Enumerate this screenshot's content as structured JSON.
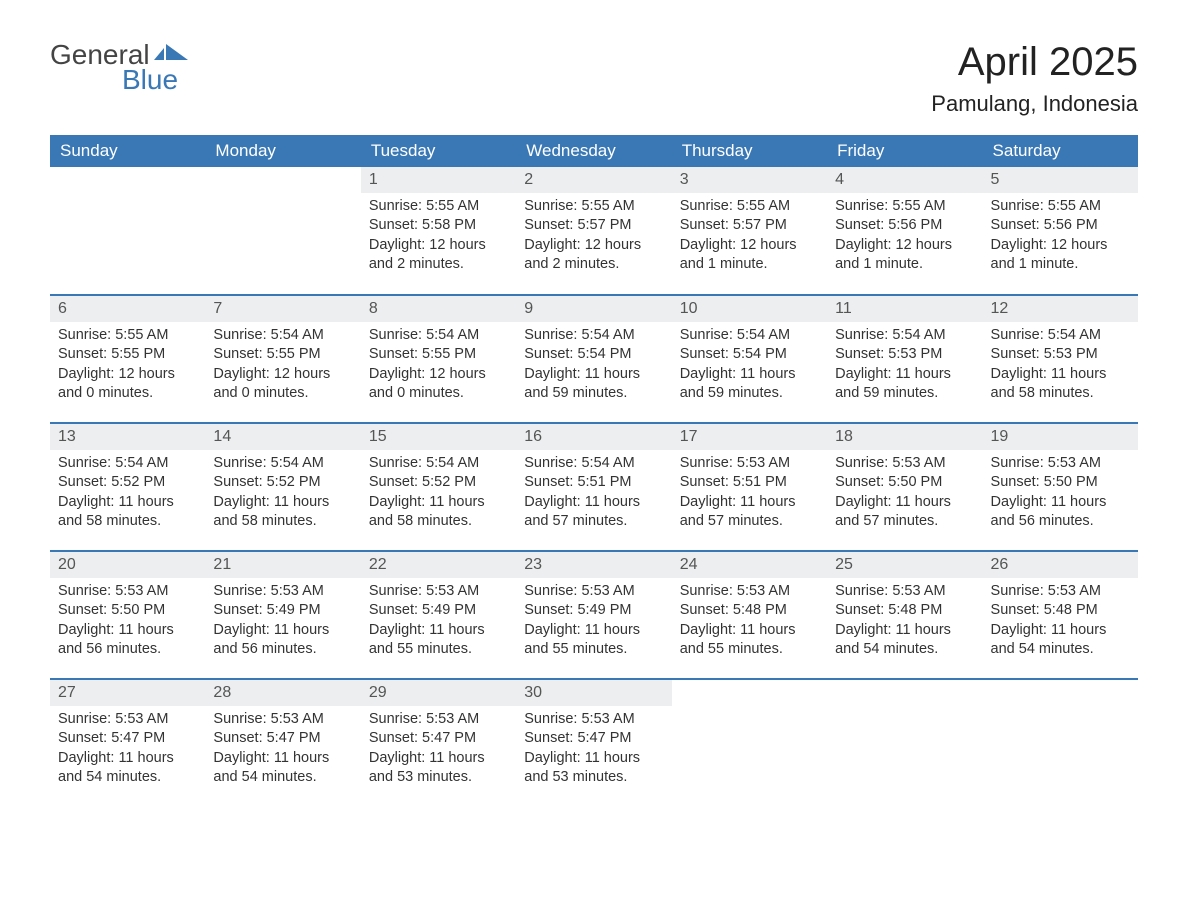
{
  "logo": {
    "text_general": "General",
    "text_blue": "Blue",
    "flag_color": "#3a78b5"
  },
  "title": "April 2025",
  "location": "Pamulang, Indonesia",
  "colors": {
    "header_bg": "#3a78b5",
    "header_text": "#ffffff",
    "daynum_bg": "#eceeef",
    "row_divider": "#3a78b5",
    "text": "#333333",
    "background": "#ffffff"
  },
  "day_headers": [
    "Sunday",
    "Monday",
    "Tuesday",
    "Wednesday",
    "Thursday",
    "Friday",
    "Saturday"
  ],
  "weeks": [
    [
      {
        "day": "",
        "sunrise": "",
        "sunset": "",
        "daylight": "",
        "empty": true
      },
      {
        "day": "",
        "sunrise": "",
        "sunset": "",
        "daylight": "",
        "empty": true
      },
      {
        "day": "1",
        "sunrise": "Sunrise: 5:55 AM",
        "sunset": "Sunset: 5:58 PM",
        "daylight": "Daylight: 12 hours and 2 minutes."
      },
      {
        "day": "2",
        "sunrise": "Sunrise: 5:55 AM",
        "sunset": "Sunset: 5:57 PM",
        "daylight": "Daylight: 12 hours and 2 minutes."
      },
      {
        "day": "3",
        "sunrise": "Sunrise: 5:55 AM",
        "sunset": "Sunset: 5:57 PM",
        "daylight": "Daylight: 12 hours and 1 minute."
      },
      {
        "day": "4",
        "sunrise": "Sunrise: 5:55 AM",
        "sunset": "Sunset: 5:56 PM",
        "daylight": "Daylight: 12 hours and 1 minute."
      },
      {
        "day": "5",
        "sunrise": "Sunrise: 5:55 AM",
        "sunset": "Sunset: 5:56 PM",
        "daylight": "Daylight: 12 hours and 1 minute."
      }
    ],
    [
      {
        "day": "6",
        "sunrise": "Sunrise: 5:55 AM",
        "sunset": "Sunset: 5:55 PM",
        "daylight": "Daylight: 12 hours and 0 minutes."
      },
      {
        "day": "7",
        "sunrise": "Sunrise: 5:54 AM",
        "sunset": "Sunset: 5:55 PM",
        "daylight": "Daylight: 12 hours and 0 minutes."
      },
      {
        "day": "8",
        "sunrise": "Sunrise: 5:54 AM",
        "sunset": "Sunset: 5:55 PM",
        "daylight": "Daylight: 12 hours and 0 minutes."
      },
      {
        "day": "9",
        "sunrise": "Sunrise: 5:54 AM",
        "sunset": "Sunset: 5:54 PM",
        "daylight": "Daylight: 11 hours and 59 minutes."
      },
      {
        "day": "10",
        "sunrise": "Sunrise: 5:54 AM",
        "sunset": "Sunset: 5:54 PM",
        "daylight": "Daylight: 11 hours and 59 minutes."
      },
      {
        "day": "11",
        "sunrise": "Sunrise: 5:54 AM",
        "sunset": "Sunset: 5:53 PM",
        "daylight": "Daylight: 11 hours and 59 minutes."
      },
      {
        "day": "12",
        "sunrise": "Sunrise: 5:54 AM",
        "sunset": "Sunset: 5:53 PM",
        "daylight": "Daylight: 11 hours and 58 minutes."
      }
    ],
    [
      {
        "day": "13",
        "sunrise": "Sunrise: 5:54 AM",
        "sunset": "Sunset: 5:52 PM",
        "daylight": "Daylight: 11 hours and 58 minutes."
      },
      {
        "day": "14",
        "sunrise": "Sunrise: 5:54 AM",
        "sunset": "Sunset: 5:52 PM",
        "daylight": "Daylight: 11 hours and 58 minutes."
      },
      {
        "day": "15",
        "sunrise": "Sunrise: 5:54 AM",
        "sunset": "Sunset: 5:52 PM",
        "daylight": "Daylight: 11 hours and 58 minutes."
      },
      {
        "day": "16",
        "sunrise": "Sunrise: 5:54 AM",
        "sunset": "Sunset: 5:51 PM",
        "daylight": "Daylight: 11 hours and 57 minutes."
      },
      {
        "day": "17",
        "sunrise": "Sunrise: 5:53 AM",
        "sunset": "Sunset: 5:51 PM",
        "daylight": "Daylight: 11 hours and 57 minutes."
      },
      {
        "day": "18",
        "sunrise": "Sunrise: 5:53 AM",
        "sunset": "Sunset: 5:50 PM",
        "daylight": "Daylight: 11 hours and 57 minutes."
      },
      {
        "day": "19",
        "sunrise": "Sunrise: 5:53 AM",
        "sunset": "Sunset: 5:50 PM",
        "daylight": "Daylight: 11 hours and 56 minutes."
      }
    ],
    [
      {
        "day": "20",
        "sunrise": "Sunrise: 5:53 AM",
        "sunset": "Sunset: 5:50 PM",
        "daylight": "Daylight: 11 hours and 56 minutes."
      },
      {
        "day": "21",
        "sunrise": "Sunrise: 5:53 AM",
        "sunset": "Sunset: 5:49 PM",
        "daylight": "Daylight: 11 hours and 56 minutes."
      },
      {
        "day": "22",
        "sunrise": "Sunrise: 5:53 AM",
        "sunset": "Sunset: 5:49 PM",
        "daylight": "Daylight: 11 hours and 55 minutes."
      },
      {
        "day": "23",
        "sunrise": "Sunrise: 5:53 AM",
        "sunset": "Sunset: 5:49 PM",
        "daylight": "Daylight: 11 hours and 55 minutes."
      },
      {
        "day": "24",
        "sunrise": "Sunrise: 5:53 AM",
        "sunset": "Sunset: 5:48 PM",
        "daylight": "Daylight: 11 hours and 55 minutes."
      },
      {
        "day": "25",
        "sunrise": "Sunrise: 5:53 AM",
        "sunset": "Sunset: 5:48 PM",
        "daylight": "Daylight: 11 hours and 54 minutes."
      },
      {
        "day": "26",
        "sunrise": "Sunrise: 5:53 AM",
        "sunset": "Sunset: 5:48 PM",
        "daylight": "Daylight: 11 hours and 54 minutes."
      }
    ],
    [
      {
        "day": "27",
        "sunrise": "Sunrise: 5:53 AM",
        "sunset": "Sunset: 5:47 PM",
        "daylight": "Daylight: 11 hours and 54 minutes."
      },
      {
        "day": "28",
        "sunrise": "Sunrise: 5:53 AM",
        "sunset": "Sunset: 5:47 PM",
        "daylight": "Daylight: 11 hours and 54 minutes."
      },
      {
        "day": "29",
        "sunrise": "Sunrise: 5:53 AM",
        "sunset": "Sunset: 5:47 PM",
        "daylight": "Daylight: 11 hours and 53 minutes."
      },
      {
        "day": "30",
        "sunrise": "Sunrise: 5:53 AM",
        "sunset": "Sunset: 5:47 PM",
        "daylight": "Daylight: 11 hours and 53 minutes."
      },
      {
        "day": "",
        "sunrise": "",
        "sunset": "",
        "daylight": "",
        "empty": true
      },
      {
        "day": "",
        "sunrise": "",
        "sunset": "",
        "daylight": "",
        "empty": true
      },
      {
        "day": "",
        "sunrise": "",
        "sunset": "",
        "daylight": "",
        "empty": true
      }
    ]
  ]
}
